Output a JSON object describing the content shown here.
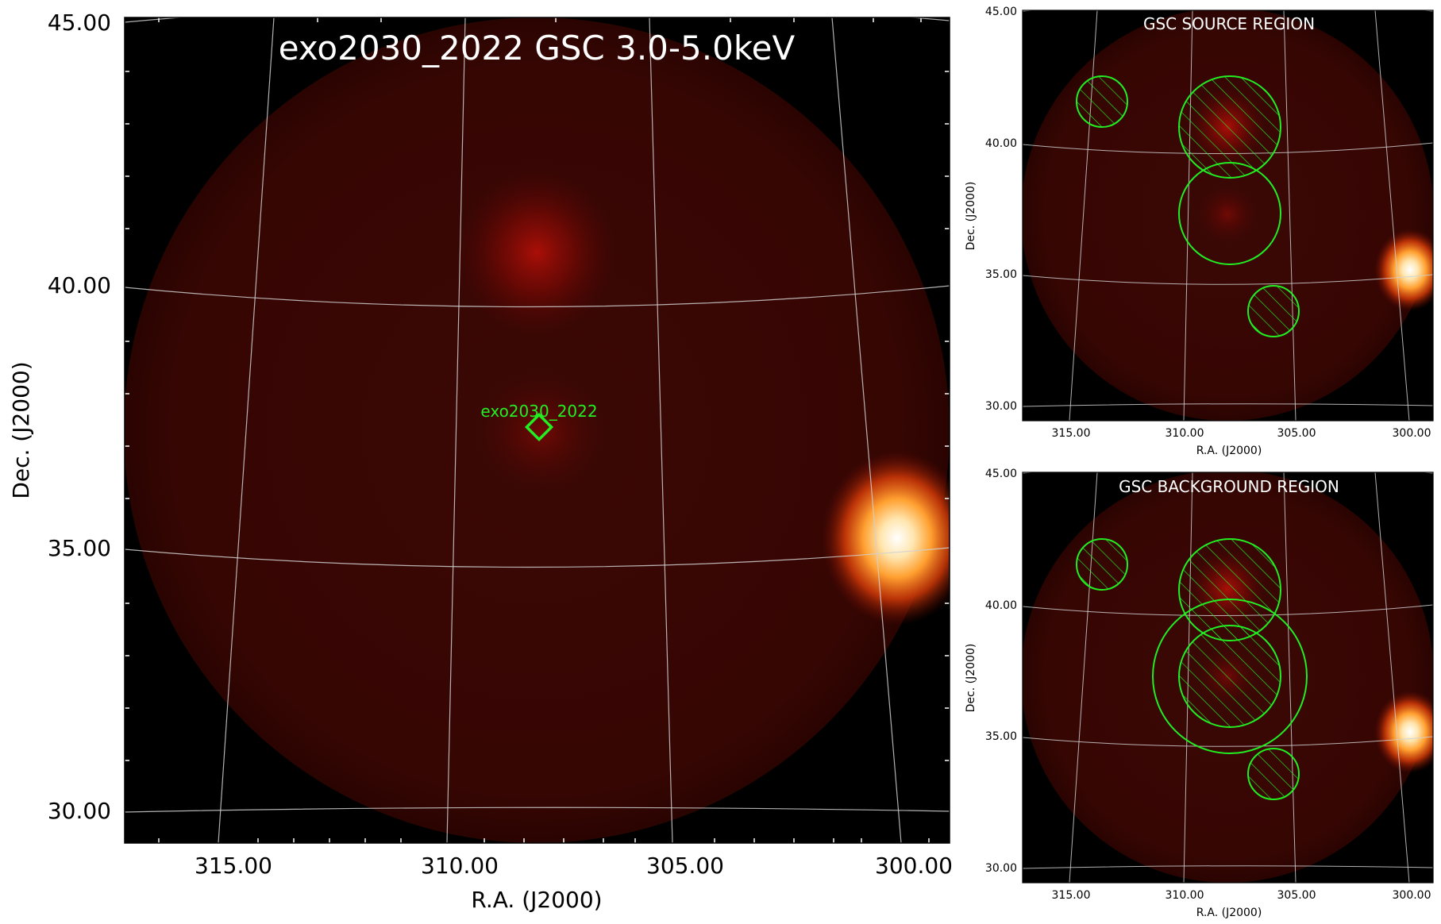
{
  "main_panel": {
    "title": "exo2030_2022 GSC 3.0-5.0keV",
    "xlabel": "R.A. (J2000)",
    "ylabel": "Dec. (J2000)",
    "ra_ticks": [
      "315.00",
      "310.00",
      "305.00",
      "300.00"
    ],
    "dec_ticks": [
      "45.00",
      "40.00",
      "35.00",
      "30.00"
    ],
    "target_label": "exo2030_2022",
    "target_marker_color": "#00ff00"
  },
  "source_panel": {
    "title": "GSC SOURCE REGION",
    "xlabel": "R.A. (J2000)",
    "ylabel": "Dec. (J2000)",
    "ra_ticks": [
      "315.00",
      "310.00",
      "305.00",
      "300.00"
    ],
    "dec_ticks": [
      "45.00",
      "40.00",
      "35.00",
      "30.00"
    ]
  },
  "background_panel": {
    "title": "GSC BACKGROUND REGION",
    "xlabel": "R.A. (J2000)",
    "ylabel": "Dec. (J2000)",
    "ra_ticks": [
      "315.00",
      "310.00",
      "305.00",
      "300.00"
    ],
    "dec_ticks": [
      "45.00",
      "40.00",
      "35.00",
      "30.00"
    ]
  },
  "colors": {
    "region": "#22ee22",
    "grid": "#d0d0d0",
    "sky_bg": "#000000",
    "field": "#3a0602"
  }
}
